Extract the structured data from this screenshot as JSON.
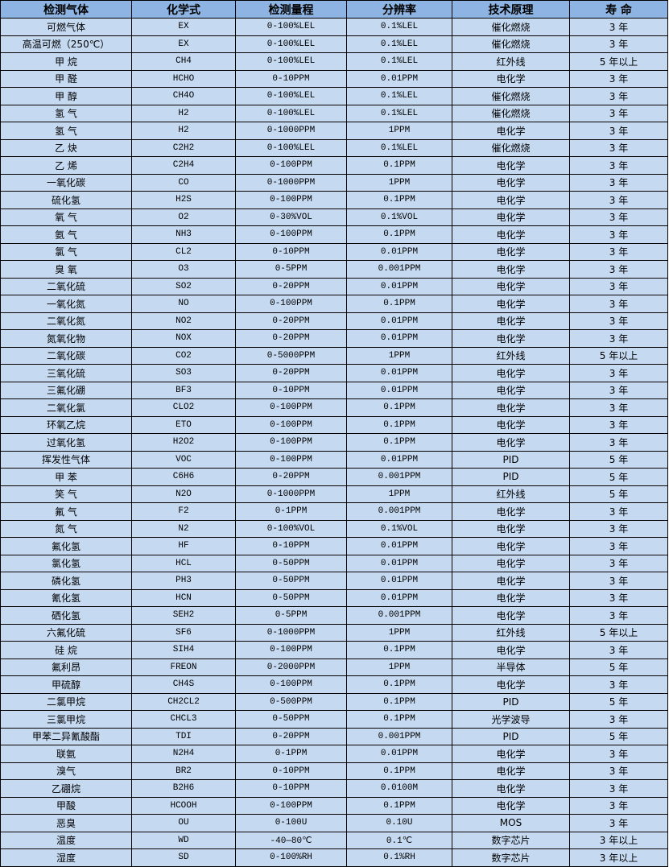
{
  "table": {
    "headers": [
      "检测气体",
      "化学式",
      "检测量程",
      "分辨率",
      "技术原理",
      "寿 命"
    ],
    "rows": [
      [
        "可燃气体",
        "EX",
        "0-100%LEL",
        "0.1%LEL",
        "催化燃烧",
        "3 年"
      ],
      [
        "高温可燃（250℃）",
        "EX",
        "0-100%LEL",
        "0.1%LEL",
        "催化燃烧",
        "3 年"
      ],
      [
        "甲 烷",
        "CH4",
        "0-100%LEL",
        "0.1%LEL",
        "红外线",
        "5 年以上"
      ],
      [
        "甲 醛",
        "HCHO",
        "0-10PPM",
        "0.01PPM",
        "电化学",
        "3 年"
      ],
      [
        "甲 醇",
        "CH4O",
        "0-100%LEL",
        "0.1%LEL",
        "催化燃烧",
        "3 年"
      ],
      [
        "氢 气",
        "H2",
        "0-100%LEL",
        "0.1%LEL",
        "催化燃烧",
        "3 年"
      ],
      [
        "氢 气",
        "H2",
        "0-1000PPM",
        "1PPM",
        "电化学",
        "3 年"
      ],
      [
        "乙 炔",
        "C2H2",
        "0-100%LEL",
        "0.1%LEL",
        "催化燃烧",
        "3 年"
      ],
      [
        "乙 烯",
        "C2H4",
        "0-100PPM",
        "0.1PPM",
        "电化学",
        "3 年"
      ],
      [
        "一氧化碳",
        "CO",
        "0-1000PPM",
        "1PPM",
        "电化学",
        "3 年"
      ],
      [
        "硫化氢",
        "H2S",
        "0-100PPM",
        "0.1PPM",
        "电化学",
        "3 年"
      ],
      [
        "氧 气",
        "O2",
        "0-30%VOL",
        "0.1%VOL",
        "电化学",
        "3 年"
      ],
      [
        "氨 气",
        "NH3",
        "0-100PPM",
        "0.1PPM",
        "电化学",
        "3 年"
      ],
      [
        "氯 气",
        "CL2",
        "0-10PPM",
        "0.01PPM",
        "电化学",
        "3 年"
      ],
      [
        "臭 氧",
        "O3",
        "0-5PPM",
        "0.001PPM",
        "电化学",
        "3 年"
      ],
      [
        "二氧化硫",
        "SO2",
        "0-20PPM",
        "0.01PPM",
        "电化学",
        "3 年"
      ],
      [
        "一氧化氮",
        "NO",
        "0-100PPM",
        "0.1PPM",
        "电化学",
        "3 年"
      ],
      [
        "二氧化氮",
        "NO2",
        "0-20PPM",
        "0.01PPM",
        "电化学",
        "3 年"
      ],
      [
        "氮氧化物",
        "NOX",
        "0-20PPM",
        "0.01PPM",
        "电化学",
        "3 年"
      ],
      [
        "二氧化碳",
        "CO2",
        "0-5000PPM",
        "1PPM",
        "红外线",
        "5 年以上"
      ],
      [
        "三氧化硫",
        "SO3",
        "0-20PPM",
        "0.01PPM",
        "电化学",
        "3 年"
      ],
      [
        "三氟化硼",
        "BF3",
        "0-10PPM",
        "0.01PPM",
        "电化学",
        "3 年"
      ],
      [
        "二氧化氯",
        "CLO2",
        "0-100PPM",
        "0.1PPM",
        "电化学",
        "3 年"
      ],
      [
        "环氧乙烷",
        "ETO",
        "0-100PPM",
        "0.1PPM",
        "电化学",
        "3 年"
      ],
      [
        "过氧化氢",
        "H2O2",
        "0-100PPM",
        "0.1PPM",
        "电化学",
        "3 年"
      ],
      [
        "挥发性气体",
        "VOC",
        "0-100PPM",
        "0.01PPM",
        "PID",
        "5 年"
      ],
      [
        "甲 苯",
        "C6H6",
        "0-20PPM",
        "0.001PPM",
        "PID",
        "5 年"
      ],
      [
        "笑 气",
        "N2O",
        "0-1000PPM",
        "1PPM",
        "红外线",
        "5 年"
      ],
      [
        "氟 气",
        "F2",
        "0-1PPM",
        "0.001PPM",
        "电化学",
        "3 年"
      ],
      [
        "氮 气",
        "N2",
        "0-100%VOL",
        "0.1%VOL",
        "电化学",
        "3 年"
      ],
      [
        "氟化氢",
        "HF",
        "0-10PPM",
        "0.01PPM",
        "电化学",
        "3 年"
      ],
      [
        "氯化氢",
        "HCL",
        "0-50PPM",
        "0.01PPM",
        "电化学",
        "3 年"
      ],
      [
        "磷化氢",
        "PH3",
        "0-50PPM",
        "0.01PPM",
        "电化学",
        "3 年"
      ],
      [
        "氰化氢",
        "HCN",
        "0-50PPM",
        "0.01PPM",
        "电化学",
        "3 年"
      ],
      [
        "硒化氢",
        "SEH2",
        "0-5PPM",
        "0.001PPM",
        "电化学",
        "3 年"
      ],
      [
        "六氟化硫",
        "SF6",
        "0-1000PPM",
        "1PPM",
        "红外线",
        "5 年以上"
      ],
      [
        "硅 烷",
        "SIH4",
        "0-100PPM",
        "0.1PPM",
        "电化学",
        "3 年"
      ],
      [
        "氟利昂",
        "FREON",
        "0-2000PPM",
        "1PPM",
        "半导体",
        "5 年"
      ],
      [
        "甲硫醇",
        "CH4S",
        "0-100PPM",
        "0.1PPM",
        "电化学",
        "3 年"
      ],
      [
        "二氯甲烷",
        "CH2CL2",
        "0-500PPM",
        "0.1PPM",
        "PID",
        "5 年"
      ],
      [
        "三氯甲烷",
        "CHCL3",
        "0-50PPM",
        "0.1PPM",
        "光学波导",
        "3 年"
      ],
      [
        "甲苯二异氰酸酯",
        "TDI",
        "0-20PPM",
        "0.001PPM",
        "PID",
        "5 年"
      ],
      [
        "联氨",
        "N2H4",
        "0-1PPM",
        "0.01PPM",
        "电化学",
        "3 年"
      ],
      [
        "溴气",
        "BR2",
        "0-10PPM",
        "0.1PPM",
        "电化学",
        "3 年"
      ],
      [
        "乙硼烷",
        "B2H6",
        "0-10PPM",
        "0.0100M",
        "电化学",
        "3 年"
      ],
      [
        "甲酸",
        "HCOOH",
        "0-100PPM",
        "0.1PPM",
        "电化学",
        "3 年"
      ],
      [
        "恶臭",
        "OU",
        "0-100U",
        "0.10U",
        "MOS",
        "3 年"
      ],
      [
        "温度",
        "WD",
        "-40—80℃",
        "0.1℃",
        "数字芯片",
        "3 年以上"
      ],
      [
        "湿度",
        "SD",
        "0-100%RH",
        "0.1%RH",
        "数字芯片",
        "3 年以上"
      ]
    ]
  }
}
